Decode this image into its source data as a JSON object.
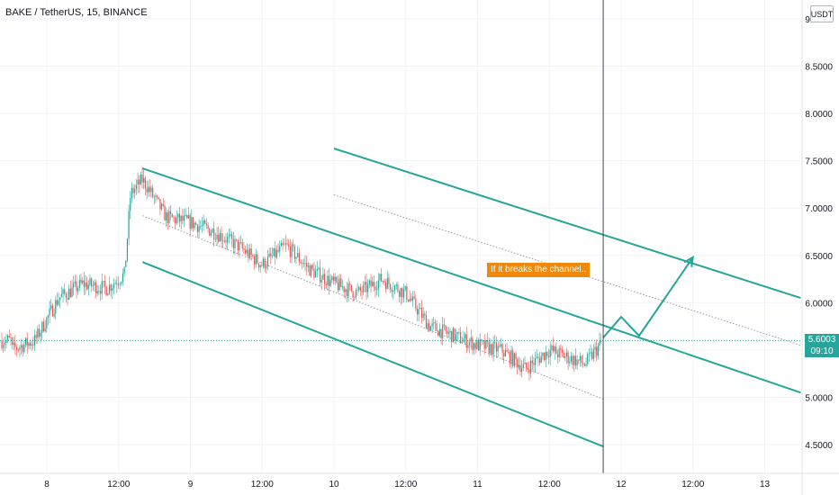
{
  "header": {
    "symbol_line": "BAKE / TetherUS, 15, BINANCE",
    "currency": "USDT"
  },
  "last_price": {
    "value": "5.6003",
    "countdown": "09:10"
  },
  "annotation": "If it breaks the channel..",
  "colors": {
    "up": "#26a69a",
    "down": "#ef5350",
    "channel": "#26a69a",
    "grid": "#f0f3fa",
    "cursor": "#434651"
  },
  "chart_data": {
    "type": "candlestick",
    "y_ticks": [
      "4.5000",
      "5.0000",
      "5.5000",
      "6.0000",
      "6.5000",
      "7.0000",
      "7.5000",
      "8.0000",
      "8.5000",
      "9.0000"
    ],
    "x_ticks": [
      "8",
      "12:00",
      "9",
      "12:00",
      "10",
      "12:00",
      "11",
      "12:00",
      "12",
      "12:00",
      "13"
    ],
    "ylim": [
      4.38,
      9.05
    ],
    "price_path": [
      {
        "t": "7 18:00",
        "p": 5.5
      },
      {
        "t": "7 22:00",
        "p": 5.6
      },
      {
        "t": "8 02:00",
        "p": 6.05
      },
      {
        "t": "8 06:00",
        "p": 6.2
      },
      {
        "t": "8 10:00",
        "p": 6.15
      },
      {
        "t": "8 13:00",
        "p": 6.3
      },
      {
        "t": "8 14:00",
        "p": 7.15
      },
      {
        "t": "8 16:00",
        "p": 7.3
      },
      {
        "t": "8 20:00",
        "p": 6.9
      },
      {
        "t": "9 00:00",
        "p": 6.85
      },
      {
        "t": "9 04:00",
        "p": 6.75
      },
      {
        "t": "9 08:00",
        "p": 6.6
      },
      {
        "t": "9 12:00",
        "p": 6.4
      },
      {
        "t": "9 16:00",
        "p": 6.6
      },
      {
        "t": "9 20:00",
        "p": 6.35
      },
      {
        "t": "10 00:00",
        "p": 6.2
      },
      {
        "t": "10 04:00",
        "p": 6.1
      },
      {
        "t": "10 08:00",
        "p": 6.25
      },
      {
        "t": "10 12:00",
        "p": 6.1
      },
      {
        "t": "10 16:00",
        "p": 5.75
      },
      {
        "t": "10 20:00",
        "p": 5.65
      },
      {
        "t": "11 00:00",
        "p": 5.55
      },
      {
        "t": "11 04:00",
        "p": 5.5
      },
      {
        "t": "11 08:00",
        "p": 5.3
      },
      {
        "t": "11 12:00",
        "p": 5.5
      },
      {
        "t": "11 16:00",
        "p": 5.4
      },
      {
        "t": "11 18:00",
        "p": 5.35
      },
      {
        "t": "11 21:00",
        "p": 5.6
      }
    ],
    "channel": {
      "upper": [
        {
          "t": "8 16:00",
          "p": 7.42
        },
        {
          "t": "13 06:00",
          "p": 5.05
        }
      ],
      "lower": [
        {
          "t": "8 16:00",
          "p": 6.43
        },
        {
          "t": "11 21:00",
          "p": 4.48
        }
      ],
      "middle_dotted": [
        {
          "t": "8 16:00",
          "p": 6.92
        },
        {
          "t": "11 21:00",
          "p": 4.98
        }
      ],
      "parallel_upper": [
        {
          "t": "10 00:00",
          "p": 7.63
        },
        {
          "t": "13 06:00",
          "p": 6.05
        }
      ],
      "parallel_middle_dotted": [
        {
          "t": "10 00:00",
          "p": 7.14
        },
        {
          "t": "13 06:00",
          "p": 5.55
        }
      ]
    },
    "projection": [
      {
        "t": "11 21:00",
        "p": 5.63
      },
      {
        "t": "12 00:00",
        "p": 5.85
      },
      {
        "t": "12 03:00",
        "p": 5.65
      },
      {
        "t": "12 12:00",
        "p": 6.48
      }
    ],
    "vertical_cursor": {
      "t": "11 21:00"
    },
    "last_price": 5.6003,
    "legend": "none",
    "grid": true
  }
}
